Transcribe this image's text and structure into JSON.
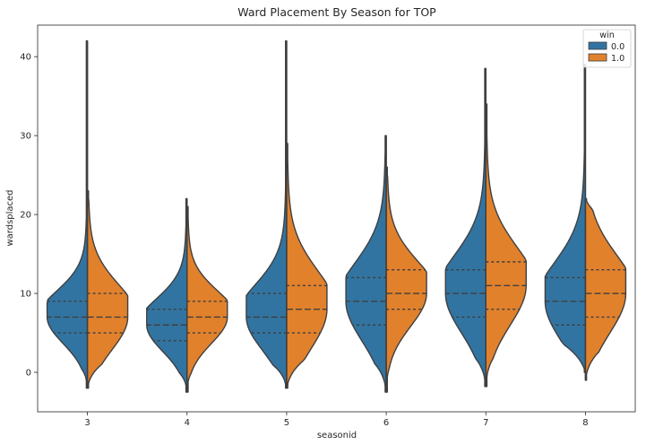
{
  "chart_data": {
    "type": "violin",
    "title": "Ward Placement By Season for TOP",
    "xlabel": "seasonid",
    "ylabel": "wardsplaced",
    "categories": [
      "3",
      "4",
      "5",
      "6",
      "7",
      "8"
    ],
    "ylim": [
      -5,
      44
    ],
    "yticks": [
      0,
      10,
      20,
      30,
      40
    ],
    "split": true,
    "inner": "quartile",
    "legend": {
      "title": "win",
      "position": "top-right",
      "entries": [
        "0.0",
        "1.0"
      ]
    },
    "series": [
      {
        "name": "0.0",
        "color": "#3274a1",
        "quartiles": [
          [
            5,
            7,
            9
          ],
          [
            4,
            6,
            8
          ],
          [
            5,
            7,
            10
          ],
          [
            6,
            9,
            12
          ],
          [
            7,
            10,
            13
          ],
          [
            6,
            9,
            12
          ]
        ],
        "range": [
          [
            -2,
            42
          ],
          [
            -2.5,
            22
          ],
          [
            -2,
            42
          ],
          [
            -2.5,
            30
          ],
          [
            -1.8,
            38.5
          ],
          [
            0,
            39
          ]
        ]
      },
      {
        "name": "1.0",
        "color": "#e1812c",
        "quartiles": [
          [
            5,
            7,
            10
          ],
          [
            5,
            7,
            9
          ],
          [
            5,
            8,
            11
          ],
          [
            8,
            10,
            13
          ],
          [
            8,
            11,
            14
          ],
          [
            7,
            10,
            13
          ]
        ],
        "range": [
          [
            -2,
            23
          ],
          [
            -2.5,
            21
          ],
          [
            -2,
            29
          ],
          [
            -2.5,
            26
          ],
          [
            -1.8,
            34
          ],
          [
            -1,
            22
          ]
        ]
      }
    ]
  }
}
